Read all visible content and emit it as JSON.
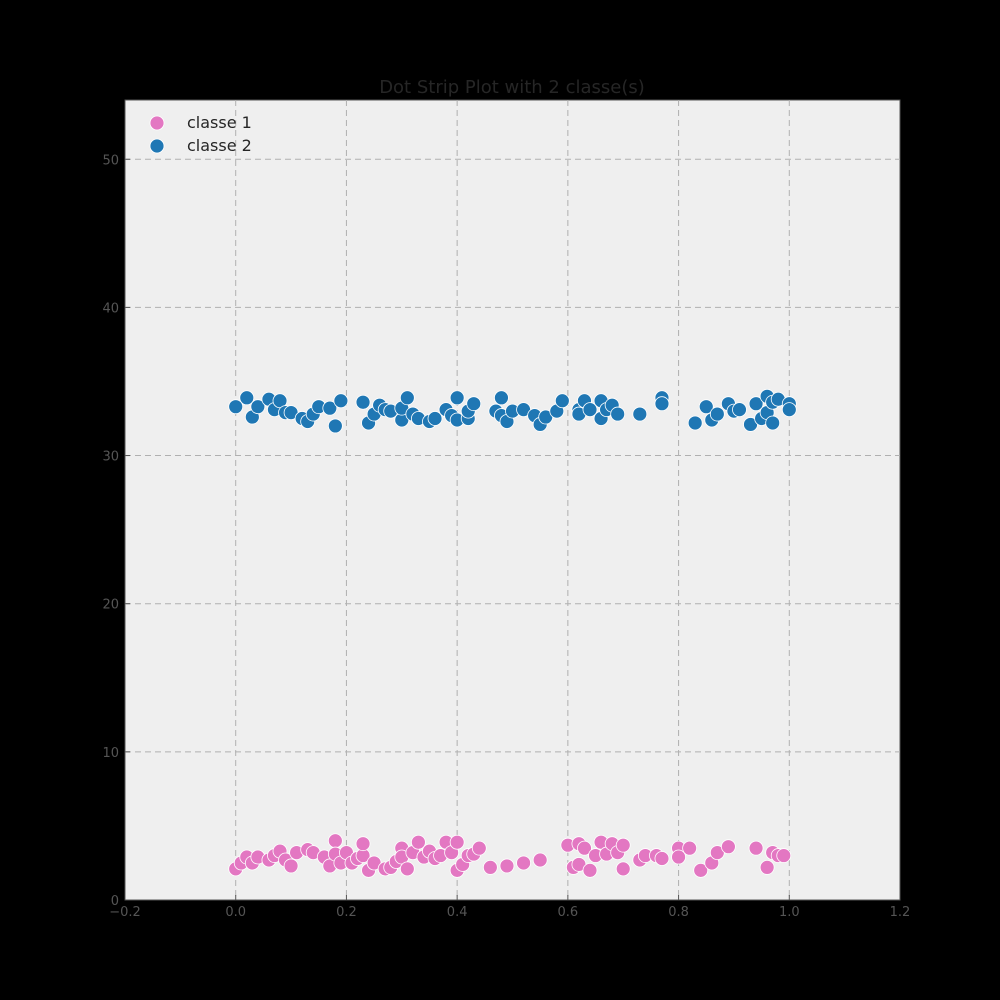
{
  "chart_data": {
    "type": "scatter",
    "title": "Dot Strip Plot with 2 classe(s)",
    "xlabel": "",
    "ylabel": "",
    "xlim": [
      -0.2,
      1.2
    ],
    "ylim": [
      0,
      54
    ],
    "x_ticks": [
      -0.2,
      0.0,
      0.2,
      0.4,
      0.6,
      0.8,
      1.0,
      1.2
    ],
    "x_tick_labels": [
      "−0.2",
      "0.0",
      "0.2",
      "0.4",
      "0.6",
      "0.8",
      "1.0",
      "1.2"
    ],
    "y_ticks": [
      0,
      10,
      20,
      30,
      40,
      50
    ],
    "y_tick_labels": [
      "0",
      "10",
      "20",
      "30",
      "40",
      "50"
    ],
    "grid": true,
    "legend_position": "top-left",
    "background_color": "#efefef",
    "series": [
      {
        "name": "classe 1",
        "color": "#e377c2",
        "points": [
          [
            0.0,
            2.1
          ],
          [
            0.01,
            2.5
          ],
          [
            0.02,
            2.9
          ],
          [
            0.03,
            2.5
          ],
          [
            0.04,
            2.9
          ],
          [
            0.06,
            2.7
          ],
          [
            0.07,
            3.0
          ],
          [
            0.08,
            3.3
          ],
          [
            0.09,
            2.7
          ],
          [
            0.1,
            2.3
          ],
          [
            0.11,
            3.2
          ],
          [
            0.13,
            3.4
          ],
          [
            0.14,
            3.2
          ],
          [
            0.16,
            2.9
          ],
          [
            0.17,
            2.3
          ],
          [
            0.18,
            4.0
          ],
          [
            0.18,
            3.1
          ],
          [
            0.19,
            2.5
          ],
          [
            0.2,
            3.2
          ],
          [
            0.21,
            2.5
          ],
          [
            0.22,
            2.8
          ],
          [
            0.23,
            3.0
          ],
          [
            0.23,
            3.8
          ],
          [
            0.24,
            2.0
          ],
          [
            0.25,
            2.5
          ],
          [
            0.27,
            2.1
          ],
          [
            0.28,
            2.2
          ],
          [
            0.29,
            2.6
          ],
          [
            0.3,
            3.5
          ],
          [
            0.3,
            2.9
          ],
          [
            0.31,
            2.1
          ],
          [
            0.32,
            3.2
          ],
          [
            0.33,
            3.9
          ],
          [
            0.34,
            2.9
          ],
          [
            0.35,
            3.3
          ],
          [
            0.36,
            2.8
          ],
          [
            0.37,
            3.0
          ],
          [
            0.38,
            3.9
          ],
          [
            0.39,
            3.2
          ],
          [
            0.4,
            3.9
          ],
          [
            0.4,
            2.0
          ],
          [
            0.41,
            2.4
          ],
          [
            0.42,
            3.0
          ],
          [
            0.43,
            3.1
          ],
          [
            0.44,
            3.5
          ],
          [
            0.46,
            2.2
          ],
          [
            0.49,
            2.3
          ],
          [
            0.52,
            2.5
          ],
          [
            0.55,
            2.7
          ],
          [
            0.6,
            3.7
          ],
          [
            0.61,
            2.2
          ],
          [
            0.62,
            2.4
          ],
          [
            0.62,
            3.8
          ],
          [
            0.63,
            3.5
          ],
          [
            0.64,
            2.0
          ],
          [
            0.65,
            3.0
          ],
          [
            0.66,
            3.9
          ],
          [
            0.67,
            3.1
          ],
          [
            0.68,
            3.8
          ],
          [
            0.69,
            3.2
          ],
          [
            0.7,
            3.7
          ],
          [
            0.7,
            2.1
          ],
          [
            0.73,
            2.7
          ],
          [
            0.74,
            3.0
          ],
          [
            0.76,
            3.0
          ],
          [
            0.77,
            2.8
          ],
          [
            0.8,
            3.5
          ],
          [
            0.8,
            2.9
          ],
          [
            0.82,
            3.5
          ],
          [
            0.84,
            2.0
          ],
          [
            0.86,
            2.5
          ],
          [
            0.87,
            3.2
          ],
          [
            0.89,
            3.6
          ],
          [
            0.94,
            3.5
          ],
          [
            0.96,
            2.2
          ],
          [
            0.97,
            3.2
          ],
          [
            0.98,
            3.0
          ],
          [
            0.99,
            3.0
          ]
        ]
      },
      {
        "name": "classe 2",
        "color": "#1f77b4",
        "points": [
          [
            0.0,
            33.3
          ],
          [
            0.02,
            33.9
          ],
          [
            0.03,
            32.6
          ],
          [
            0.04,
            33.3
          ],
          [
            0.06,
            33.8
          ],
          [
            0.07,
            33.1
          ],
          [
            0.08,
            33.7
          ],
          [
            0.09,
            32.9
          ],
          [
            0.1,
            32.9
          ],
          [
            0.12,
            32.5
          ],
          [
            0.13,
            32.3
          ],
          [
            0.14,
            32.8
          ],
          [
            0.15,
            33.3
          ],
          [
            0.17,
            33.2
          ],
          [
            0.18,
            32.0
          ],
          [
            0.19,
            33.7
          ],
          [
            0.23,
            33.6
          ],
          [
            0.24,
            32.2
          ],
          [
            0.25,
            32.8
          ],
          [
            0.26,
            33.4
          ],
          [
            0.27,
            33.1
          ],
          [
            0.28,
            33.0
          ],
          [
            0.3,
            32.4
          ],
          [
            0.3,
            33.2
          ],
          [
            0.31,
            33.9
          ],
          [
            0.32,
            32.8
          ],
          [
            0.33,
            32.5
          ],
          [
            0.35,
            32.3
          ],
          [
            0.36,
            32.5
          ],
          [
            0.38,
            33.1
          ],
          [
            0.39,
            32.7
          ],
          [
            0.4,
            33.9
          ],
          [
            0.4,
            32.4
          ],
          [
            0.42,
            32.5
          ],
          [
            0.42,
            33.0
          ],
          [
            0.43,
            33.5
          ],
          [
            0.47,
            33.0
          ],
          [
            0.48,
            33.9
          ],
          [
            0.48,
            32.7
          ],
          [
            0.49,
            32.3
          ],
          [
            0.5,
            33.0
          ],
          [
            0.52,
            33.1
          ],
          [
            0.54,
            32.7
          ],
          [
            0.55,
            32.1
          ],
          [
            0.56,
            32.6
          ],
          [
            0.58,
            33.0
          ],
          [
            0.59,
            33.7
          ],
          [
            0.62,
            33.1
          ],
          [
            0.62,
            32.8
          ],
          [
            0.63,
            33.7
          ],
          [
            0.64,
            33.1
          ],
          [
            0.66,
            33.7
          ],
          [
            0.66,
            32.5
          ],
          [
            0.67,
            33.1
          ],
          [
            0.68,
            33.4
          ],
          [
            0.69,
            32.8
          ],
          [
            0.73,
            32.8
          ],
          [
            0.77,
            33.9
          ],
          [
            0.77,
            33.5
          ],
          [
            0.83,
            32.2
          ],
          [
            0.85,
            33.3
          ],
          [
            0.86,
            32.4
          ],
          [
            0.87,
            32.8
          ],
          [
            0.89,
            33.5
          ],
          [
            0.9,
            33.0
          ],
          [
            0.91,
            33.1
          ],
          [
            0.93,
            32.1
          ],
          [
            0.94,
            33.5
          ],
          [
            0.95,
            32.5
          ],
          [
            0.96,
            32.9
          ],
          [
            0.96,
            34.0
          ],
          [
            0.97,
            33.6
          ],
          [
            0.97,
            32.2
          ],
          [
            0.98,
            33.8
          ],
          [
            1.0,
            33.5
          ],
          [
            1.0,
            33.1
          ]
        ]
      }
    ]
  }
}
